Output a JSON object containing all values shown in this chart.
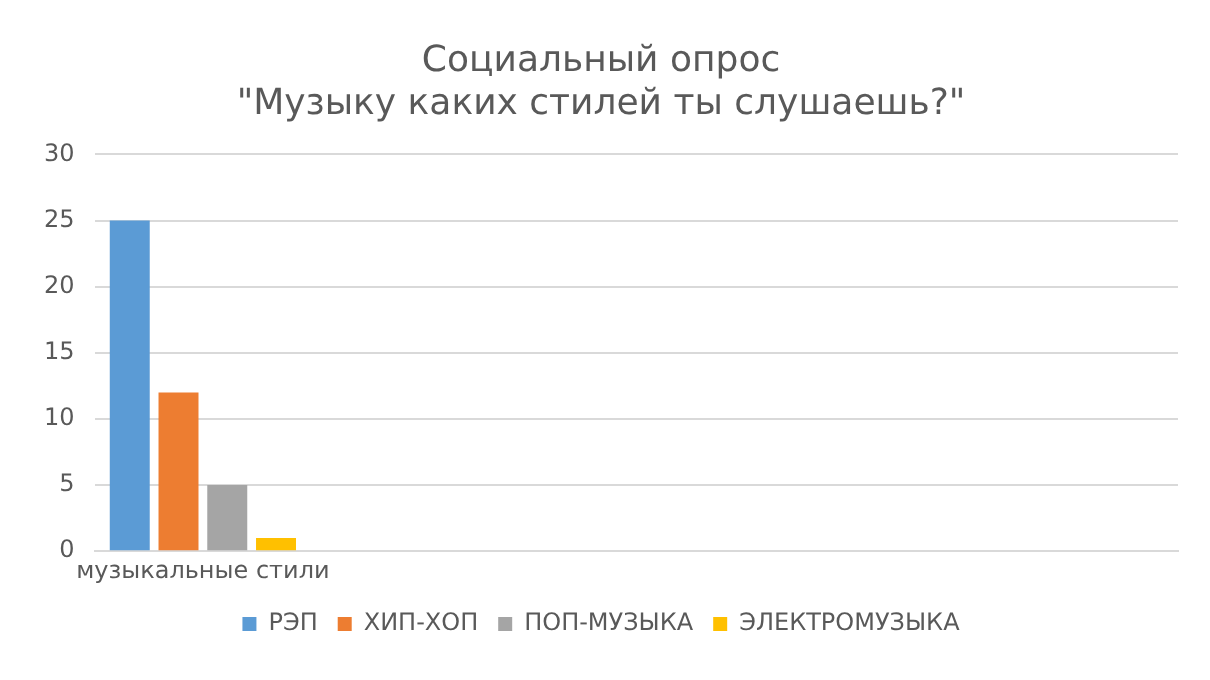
{
  "chart_data": {
    "type": "bar",
    "title": "Социальный опрос",
    "subtitle": "\"Музыку каких стилей ты слушаешь?\"",
    "categories": [
      "музыкальные стили",
      null,
      null,
      null,
      null
    ],
    "series": [
      {
        "name": "РЭП",
        "color": "#5b9bd5",
        "values": [
          25,
          null,
          null,
          null,
          null
        ]
      },
      {
        "name": "ХИП-ХОП",
        "color": "#ed7d31",
        "values": [
          12,
          null,
          null,
          null,
          null
        ]
      },
      {
        "name": "ПОП-МУЗЫКА",
        "color": "#a5a5a5",
        "values": [
          5,
          null,
          null,
          null,
          null
        ]
      },
      {
        "name": "ЭЛЕКТРОМУЗЫКА",
        "color": "#ffc000",
        "values": [
          1,
          null,
          null,
          null,
          null
        ]
      }
    ],
    "ylim": [
      0,
      30
    ],
    "yticks": [
      0,
      5,
      10,
      15,
      20,
      25,
      30
    ],
    "grid": "y",
    "legend": "bottom"
  }
}
